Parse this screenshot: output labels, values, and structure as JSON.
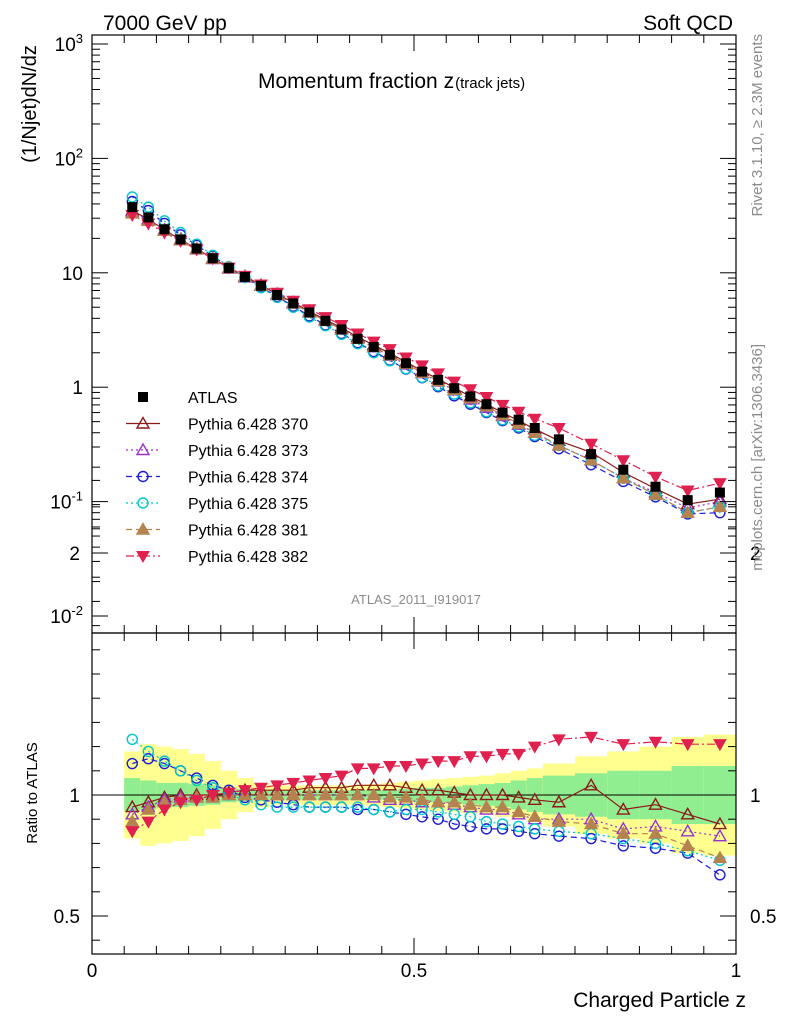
{
  "header": {
    "left": "7000 GeV pp",
    "right": "Soft QCD"
  },
  "side_text": {
    "top": "Rivet 3.1.10, ≥ 2.3M events",
    "bottom": "mcplots.cern.ch [arXiv:1306.3436]"
  },
  "analysis_id": "ATLAS_2011_I919017",
  "chart_data": [
    {
      "type": "scatter",
      "panel": "main",
      "title_main": "Momentum fraction z",
      "title_sub": "(track jets)",
      "ylabel": "(1/Njet)dN/dz",
      "y_scale": "log",
      "ylim": [
        0.007,
        1100
      ],
      "xlim": [
        0,
        1
      ],
      "y_tick_labels": [
        "10^-2",
        "10^-1",
        "1",
        "10",
        "10^2",
        "10^3"
      ],
      "legend_position": "center-left",
      "x": [
        0.0625,
        0.0875,
        0.1125,
        0.1375,
        0.1625,
        0.1875,
        0.2125,
        0.2375,
        0.2625,
        0.2875,
        0.3125,
        0.3375,
        0.3625,
        0.3875,
        0.4125,
        0.4375,
        0.4625,
        0.4875,
        0.5125,
        0.5375,
        0.5625,
        0.5875,
        0.6125,
        0.6375,
        0.6625,
        0.6875,
        0.725,
        0.775,
        0.825,
        0.875,
        0.925,
        0.975
      ],
      "series": [
        {
          "name": "ATLAS",
          "marker": "square-filled",
          "color": "#000000",
          "values": [
            37.5,
            30.5,
            24.0,
            19.6,
            16.3,
            13.4,
            11.0,
            9.2,
            7.7,
            6.4,
            5.4,
            4.5,
            3.8,
            3.2,
            2.65,
            2.25,
            1.92,
            1.62,
            1.37,
            1.16,
            0.98,
            0.83,
            0.71,
            0.6,
            0.52,
            0.44,
            0.35,
            0.26,
            0.19,
            0.135,
            0.103,
            0.12
          ]
        },
        {
          "name": "Pythia 6.428 370",
          "marker": "triangle-up-open",
          "color": "#8b1a1a",
          "line": "solid",
          "values": [
            35,
            29.5,
            23.7,
            19.5,
            16.2,
            13.4,
            11.0,
            9.3,
            7.8,
            6.5,
            5.5,
            4.6,
            3.9,
            3.3,
            2.75,
            2.33,
            1.98,
            1.66,
            1.39,
            1.18,
            0.99,
            0.83,
            0.71,
            0.6,
            0.51,
            0.43,
            0.34,
            0.27,
            0.18,
            0.13,
            0.095,
            0.105
          ]
        },
        {
          "name": "Pythia 6.428 373",
          "marker": "triangle-up-open",
          "color": "#9b30d0",
          "line": "dotted",
          "values": [
            34,
            29,
            23.5,
            19.3,
            16.0,
            13.2,
            10.9,
            9.1,
            7.7,
            6.4,
            5.4,
            4.5,
            3.8,
            3.2,
            2.65,
            2.23,
            1.88,
            1.58,
            1.33,
            1.12,
            0.94,
            0.78,
            0.66,
            0.56,
            0.47,
            0.4,
            0.31,
            0.23,
            0.16,
            0.12,
            0.088,
            0.1
          ]
        },
        {
          "name": "Pythia 6.428 374",
          "marker": "circle-open",
          "color": "#1c1cd4",
          "line": "dashed",
          "values": [
            42,
            35,
            27,
            21.5,
            17.4,
            14.0,
            11.2,
            9.1,
            7.5,
            6.2,
            5.1,
            4.2,
            3.5,
            2.95,
            2.45,
            2.05,
            1.72,
            1.44,
            1.21,
            1.01,
            0.84,
            0.71,
            0.6,
            0.51,
            0.44,
            0.37,
            0.29,
            0.21,
            0.15,
            0.11,
            0.078,
            0.08
          ]
        },
        {
          "name": "Pythia 6.428 375",
          "marker": "circle-open",
          "color": "#00c8c8",
          "line": "dotted",
          "values": [
            46,
            37.5,
            28.5,
            22.5,
            17.8,
            14.2,
            11.3,
            9.1,
            7.4,
            6.1,
            5.0,
            4.1,
            3.45,
            2.9,
            2.4,
            2.0,
            1.7,
            1.45,
            1.22,
            1.03,
            0.87,
            0.73,
            0.61,
            0.52,
            0.45,
            0.38,
            0.31,
            0.23,
            0.16,
            0.115,
            0.08,
            0.09
          ]
        },
        {
          "name": "Pythia 6.428 381",
          "marker": "triangle-up-filled",
          "color": "#b5834f",
          "line": "dashed",
          "values": [
            33,
            28.5,
            23.3,
            19.3,
            16.1,
            13.3,
            11.0,
            9.2,
            7.7,
            6.4,
            5.4,
            4.5,
            3.8,
            3.2,
            2.65,
            2.25,
            1.9,
            1.6,
            1.34,
            1.13,
            0.95,
            0.8,
            0.68,
            0.57,
            0.48,
            0.4,
            0.31,
            0.23,
            0.16,
            0.115,
            0.08,
            0.09
          ]
        },
        {
          "name": "Pythia 6.428 382",
          "marker": "triangle-down-filled",
          "color": "#e0204e",
          "line": "dashdot",
          "values": [
            32,
            27,
            22.5,
            19.0,
            16.0,
            13.4,
            11.1,
            9.4,
            7.9,
            6.7,
            5.7,
            4.8,
            4.1,
            3.5,
            2.95,
            2.5,
            2.15,
            1.82,
            1.55,
            1.32,
            1.12,
            0.96,
            0.82,
            0.7,
            0.61,
            0.53,
            0.44,
            0.32,
            0.23,
            0.165,
            0.125,
            0.145
          ]
        }
      ]
    },
    {
      "type": "scatter",
      "panel": "ratio",
      "ylabel": "Ratio to ATLAS",
      "xlabel": "Charged Particle z",
      "ylim": [
        0.35,
        2.4
      ],
      "xlim": [
        0,
        1
      ],
      "x_ticks": [
        0,
        0.5,
        1
      ],
      "x_tick_labels": [
        "0",
        "0.5",
        "1"
      ],
      "y_ticks": [
        0.5,
        1,
        2
      ],
      "y_tick_labels": [
        "0.5",
        "1",
        "2"
      ],
      "bands": {
        "x_edges": [
          0.05,
          0.075,
          0.1,
          0.125,
          0.15,
          0.175,
          0.2,
          0.225,
          0.25,
          0.275,
          0.3,
          0.325,
          0.35,
          0.375,
          0.4,
          0.425,
          0.45,
          0.475,
          0.5,
          0.525,
          0.55,
          0.575,
          0.6,
          0.625,
          0.65,
          0.675,
          0.7,
          0.75,
          0.8,
          0.85,
          0.9,
          0.95,
          1.0
        ],
        "inner_half_width": [
          0.07,
          0.06,
          0.05,
          0.05,
          0.045,
          0.04,
          0.03,
          0.025,
          0.02,
          0.02,
          0.02,
          0.02,
          0.02,
          0.02,
          0.02,
          0.02,
          0.02,
          0.025,
          0.03,
          0.03,
          0.035,
          0.04,
          0.045,
          0.05,
          0.06,
          0.07,
          0.08,
          0.09,
          0.1,
          0.1,
          0.12,
          0.12
        ],
        "outer_half_width": [
          0.18,
          0.21,
          0.2,
          0.19,
          0.17,
          0.14,
          0.1,
          0.07,
          0.05,
          0.04,
          0.04,
          0.04,
          0.04,
          0.04,
          0.04,
          0.045,
          0.05,
          0.055,
          0.06,
          0.065,
          0.07,
          0.075,
          0.08,
          0.09,
          0.1,
          0.11,
          0.13,
          0.16,
          0.18,
          0.2,
          0.24,
          0.25
        ],
        "inner_color": "#90ee90",
        "outer_color": "#ffff90"
      },
      "series": [
        {
          "name": "Pythia 6.428 370",
          "values": [
            0.95,
            0.97,
            0.99,
            1.0,
            1.0,
            1.0,
            1.01,
            1.02,
            1.02,
            1.02,
            1.02,
            1.03,
            1.03,
            1.03,
            1.04,
            1.04,
            1.04,
            1.03,
            1.02,
            1.02,
            1.01,
            1.0,
            1.0,
            1.0,
            0.99,
            0.98,
            0.97,
            1.04,
            0.94,
            0.96,
            0.92,
            0.88
          ]
        },
        {
          "name": "Pythia 6.428 373",
          "values": [
            0.92,
            0.95,
            0.98,
            0.99,
            0.99,
            0.99,
            1.0,
            1.0,
            1.0,
            1.0,
            1.0,
            1.0,
            1.0,
            1.0,
            1.0,
            0.99,
            0.98,
            0.98,
            0.97,
            0.97,
            0.96,
            0.95,
            0.94,
            0.94,
            0.92,
            0.9,
            0.9,
            0.9,
            0.86,
            0.87,
            0.85,
            0.83
          ]
        },
        {
          "name": "Pythia 6.428 374",
          "values": [
            1.13,
            1.15,
            1.13,
            1.1,
            1.07,
            1.04,
            1.02,
            0.99,
            0.98,
            0.97,
            0.96,
            0.95,
            0.95,
            0.95,
            0.94,
            0.94,
            0.93,
            0.92,
            0.91,
            0.9,
            0.88,
            0.87,
            0.86,
            0.86,
            0.85,
            0.84,
            0.83,
            0.82,
            0.79,
            0.78,
            0.76,
            0.67
          ]
        },
        {
          "name": "Pythia 6.428 375",
          "values": [
            1.23,
            1.18,
            1.14,
            1.1,
            1.06,
            1.03,
            1.0,
            0.98,
            0.96,
            0.95,
            0.95,
            0.95,
            0.95,
            0.95,
            0.95,
            0.94,
            0.93,
            0.94,
            0.94,
            0.93,
            0.92,
            0.91,
            0.89,
            0.88,
            0.87,
            0.86,
            0.85,
            0.84,
            0.82,
            0.8,
            0.77,
            0.73
          ]
        },
        {
          "name": "Pythia 6.428 381",
          "values": [
            0.89,
            0.94,
            0.97,
            0.98,
            0.99,
            0.99,
            1.0,
            1.0,
            1.0,
            1.0,
            1.0,
            1.0,
            1.0,
            1.0,
            1.0,
            1.0,
            0.99,
            0.99,
            0.98,
            0.97,
            0.97,
            0.96,
            0.95,
            0.95,
            0.93,
            0.91,
            0.89,
            0.88,
            0.84,
            0.84,
            0.79,
            0.74
          ]
        },
        {
          "name": "Pythia 6.428 382",
          "values": [
            0.85,
            0.89,
            0.94,
            0.97,
            0.98,
            1.0,
            1.01,
            1.02,
            1.03,
            1.04,
            1.05,
            1.06,
            1.07,
            1.08,
            1.11,
            1.11,
            1.12,
            1.12,
            1.13,
            1.14,
            1.14,
            1.16,
            1.16,
            1.17,
            1.17,
            1.2,
            1.23,
            1.24,
            1.21,
            1.22,
            1.21,
            1.21
          ]
        }
      ]
    }
  ]
}
